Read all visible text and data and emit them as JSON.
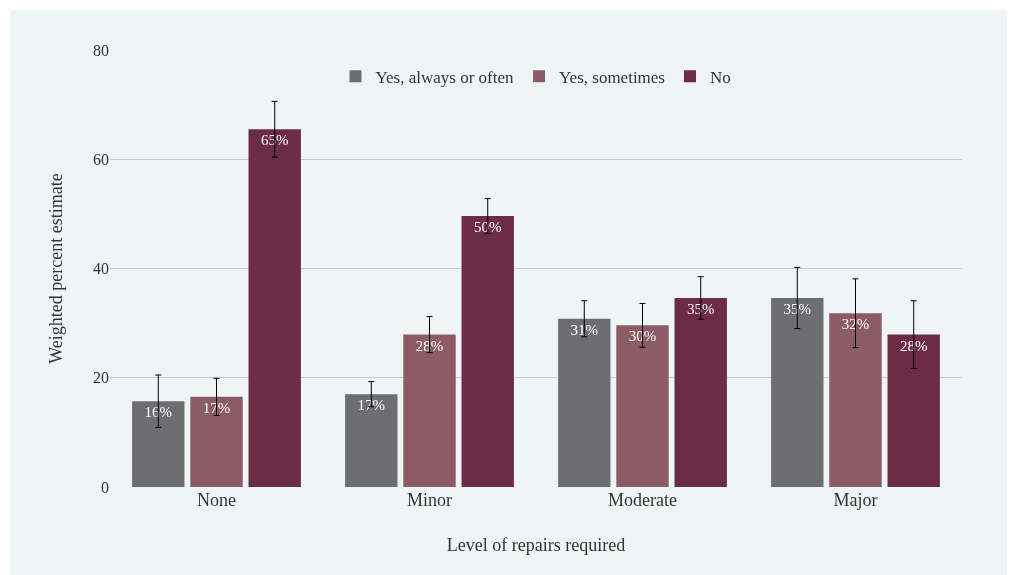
{
  "chart_data": {
    "type": "bar",
    "xlabel": "Level of repairs required",
    "ylabel": "Weighted percent estimate",
    "categories": [
      "None",
      "Minor",
      "Moderate",
      "Major"
    ],
    "series": [
      {
        "name": "Yes, always or often",
        "color": "#6d6e71",
        "values": [
          15.7,
          17.0,
          30.8,
          34.6
        ],
        "errors": [
          4.8,
          2.3,
          3.3,
          5.6
        ],
        "value_labels": [
          "16%",
          "17%",
          "31%",
          "35%"
        ]
      },
      {
        "name": "Yes, sometimes",
        "color": "#8c5c66",
        "values": [
          16.5,
          27.9,
          29.6,
          31.8
        ],
        "errors": [
          3.4,
          3.3,
          4.0,
          6.3
        ],
        "value_labels": [
          "17%",
          "28%",
          "30%",
          "32%"
        ]
      },
      {
        "name": "No",
        "color": "#6b2c44",
        "values": [
          65.5,
          49.6,
          34.6,
          27.9
        ],
        "errors": [
          5.1,
          3.2,
          3.9,
          6.2
        ],
        "value_labels": [
          "65%",
          "50%",
          "35%",
          "28%"
        ]
      }
    ],
    "ylim": [
      0,
      80
    ],
    "yticks": [
      0,
      20,
      40,
      60,
      80
    ],
    "grid": "y",
    "legend": "top"
  }
}
